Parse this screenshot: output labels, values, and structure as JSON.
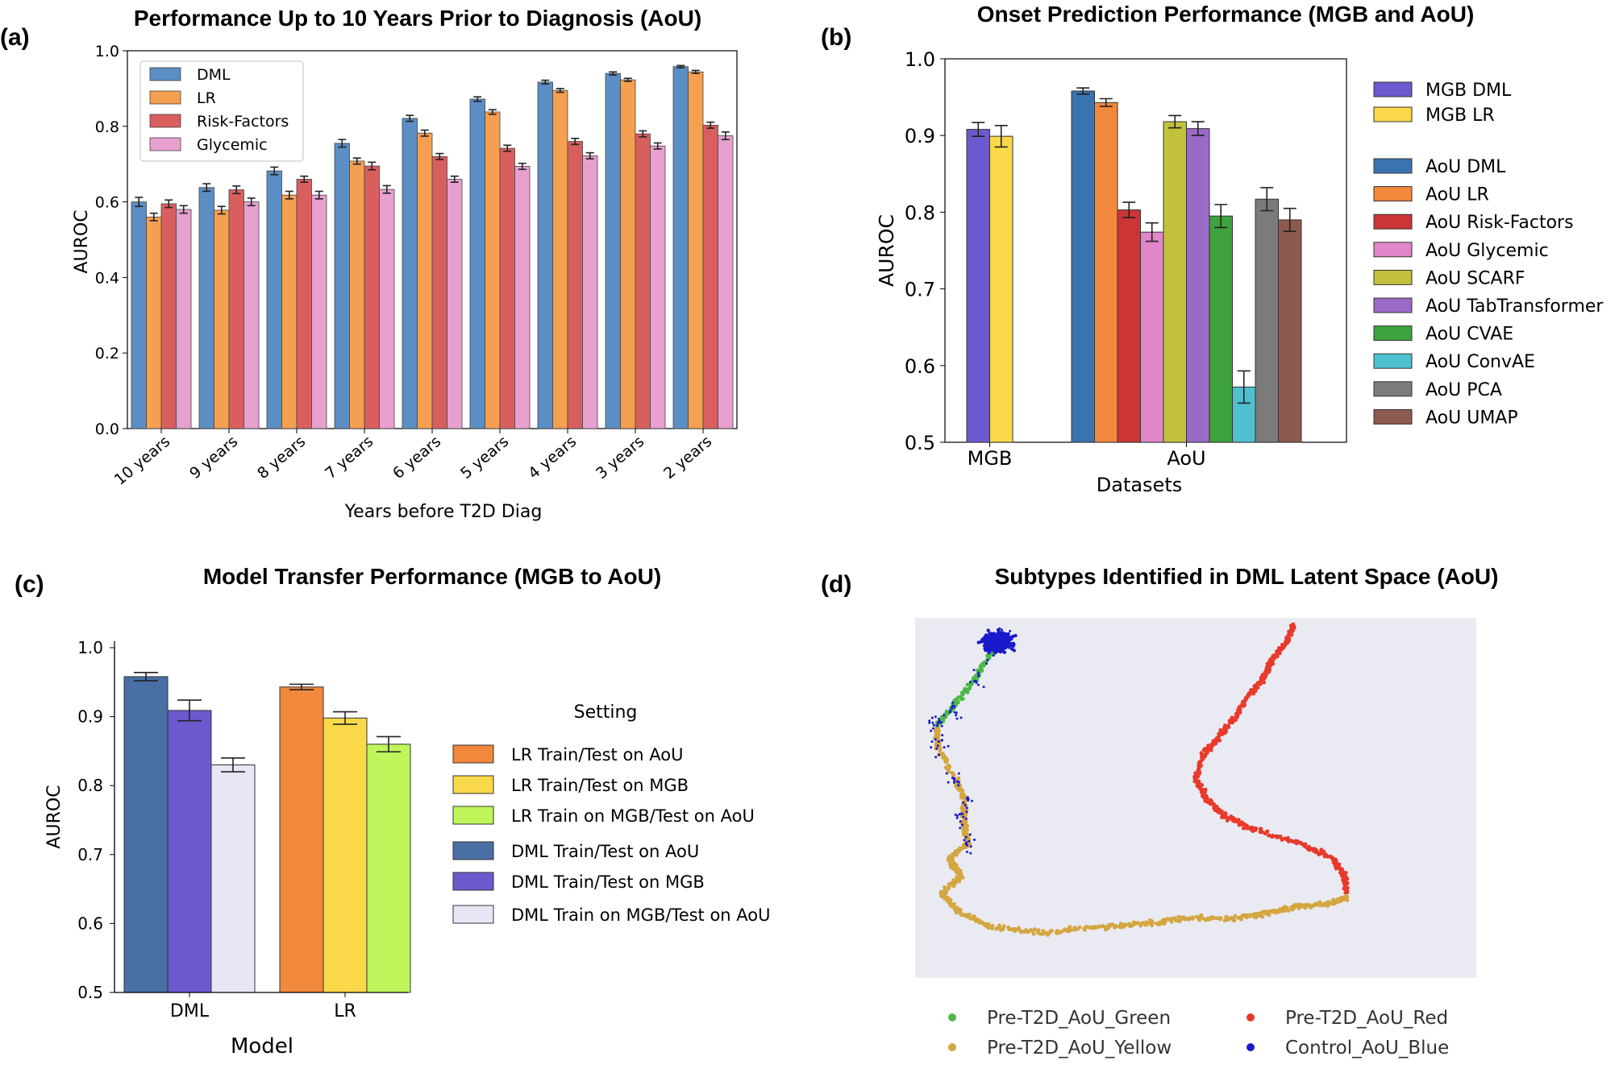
{
  "panels": {
    "a": {
      "label": "(a)",
      "chart_data": {
        "type": "bar",
        "title": "Performance Up to 10 Years Prior to Diagnosis (AoU)",
        "xlabel": "Years before T2D Diag",
        "ylabel": "AUROC",
        "ylim": [
          0,
          1.0
        ],
        "yticks": [
          "0.0",
          "0.2",
          "0.4",
          "0.6",
          "0.8",
          "1.0"
        ],
        "categories": [
          "10 years",
          "9 years",
          "8 years",
          "7 years",
          "6 years",
          "5 years",
          "4 years",
          "3 years",
          "2 years"
        ],
        "legend_position": "top-left",
        "series": [
          {
            "name": "DML",
            "color": "#5b8ec4",
            "values": [
              0.6,
              0.638,
              0.682,
              0.755,
              0.821,
              0.872,
              0.917,
              0.94,
              0.958
            ],
            "errors": [
              0.012,
              0.01,
              0.01,
              0.01,
              0.008,
              0.006,
              0.005,
              0.004,
              0.003
            ]
          },
          {
            "name": "LR",
            "color": "#f5a050",
            "values": [
              0.56,
              0.578,
              0.618,
              0.708,
              0.782,
              0.838,
              0.895,
              0.923,
              0.944
            ],
            "errors": [
              0.01,
              0.01,
              0.01,
              0.008,
              0.008,
              0.006,
              0.005,
              0.004,
              0.004
            ]
          },
          {
            "name": "Risk-Factors",
            "color": "#d95f5f",
            "values": [
              0.595,
              0.632,
              0.66,
              0.695,
              0.72,
              0.742,
              0.76,
              0.78,
              0.803
            ],
            "errors": [
              0.01,
              0.01,
              0.008,
              0.01,
              0.008,
              0.008,
              0.008,
              0.008,
              0.008
            ]
          },
          {
            "name": "Glycemic",
            "color": "#e8a0cf",
            "values": [
              0.58,
              0.6,
              0.618,
              0.633,
              0.66,
              0.694,
              0.722,
              0.748,
              0.775
            ],
            "errors": [
              0.01,
              0.01,
              0.01,
              0.01,
              0.008,
              0.008,
              0.008,
              0.008,
              0.01
            ]
          }
        ]
      }
    },
    "b": {
      "label": "(b)",
      "chart_data": {
        "type": "bar",
        "title": "Onset Prediction Performance (MGB and AoU)",
        "xlabel": "Datasets",
        "ylabel": "AUROC",
        "ylim": [
          0.5,
          1.0
        ],
        "yticks": [
          "0.5",
          "0.6",
          "0.7",
          "0.8",
          "0.9",
          "1.0"
        ],
        "categories": [
          "MGB",
          "AoU"
        ],
        "legend_position": "right",
        "series": [
          {
            "name": "MGB DML",
            "group": "MGB",
            "color": "#6a5acd",
            "value": 0.908,
            "error": 0.009
          },
          {
            "name": "MGB LR",
            "group": "MGB",
            "color": "#f9d949",
            "value": 0.899,
            "error": 0.014
          },
          {
            "name": "AoU DML",
            "group": "AoU",
            "color": "#3a74b0",
            "value": 0.958,
            "error": 0.004
          },
          {
            "name": "AoU LR",
            "group": "AoU",
            "color": "#f2883b",
            "value": 0.943,
            "error": 0.005
          },
          {
            "name": "AoU Risk-Factors",
            "group": "AoU",
            "color": "#cc3535",
            "value": 0.803,
            "error": 0.01
          },
          {
            "name": "AoU Glycemic",
            "group": "AoU",
            "color": "#e086c9",
            "value": 0.774,
            "error": 0.012
          },
          {
            "name": "AoU SCARF",
            "group": "AoU",
            "color": "#c2c13e",
            "value": 0.918,
            "error": 0.008
          },
          {
            "name": "AoU TabTransformer",
            "group": "AoU",
            "color": "#9a6ac7",
            "value": 0.909,
            "error": 0.009
          },
          {
            "name": "AoU CVAE",
            "group": "AoU",
            "color": "#3ea23e",
            "value": 0.795,
            "error": 0.015
          },
          {
            "name": "AoU ConvAE",
            "group": "AoU",
            "color": "#4fc0d0",
            "value": 0.572,
            "error": 0.021
          },
          {
            "name": "AoU PCA",
            "group": "AoU",
            "color": "#7b7b7b",
            "value": 0.817,
            "error": 0.015
          },
          {
            "name": "AoU UMAP",
            "group": "AoU",
            "color": "#8c5a4e",
            "value": 0.79,
            "error": 0.015
          }
        ]
      }
    },
    "c": {
      "label": "(c)",
      "chart_data": {
        "type": "bar",
        "title": "Model Transfer Performance (MGB to AoU)",
        "xlabel": "Model",
        "ylabel": "AUROC",
        "ylim": [
          0.5,
          1.0
        ],
        "yticks": [
          "0.5",
          "0.6",
          "0.7",
          "0.8",
          "0.9",
          "1.0"
        ],
        "categories": [
          "DML",
          "LR"
        ],
        "legend_title": "Setting",
        "legend_position": "right",
        "series": [
          {
            "name": "DML Train/Test on AoU",
            "group": "DML",
            "color": "#4a6fa5",
            "value": 0.958,
            "error": 0.006
          },
          {
            "name": "DML Train/Test on MGB",
            "group": "DML",
            "color": "#6a5acd",
            "value": 0.909,
            "error": 0.015
          },
          {
            "name": "DML Train on MGB/Test on AoU",
            "group": "DML",
            "color": "#e6e6f5",
            "value": 0.83,
            "error": 0.01
          },
          {
            "name": "LR Train/Test on AoU",
            "group": "LR",
            "color": "#f2883b",
            "value": 0.943,
            "error": 0.004
          },
          {
            "name": "LR Train/Test on MGB",
            "group": "LR",
            "color": "#f9d949",
            "value": 0.898,
            "error": 0.009
          },
          {
            "name": "LR Train on MGB/Test on AoU",
            "group": "LR",
            "color": "#bff55a",
            "value": 0.86,
            "error": 0.011
          }
        ],
        "legend_order": [
          3,
          4,
          5,
          0,
          1,
          2
        ]
      }
    },
    "d": {
      "label": "(d)",
      "chart_data": {
        "type": "scatter",
        "title": "Subtypes Identified in DML Latent Space (AoU)",
        "xlabel": "",
        "ylabel": "",
        "grid": false,
        "background": "#eaeaf2",
        "xlim": [
          0,
          100
        ],
        "ylim": [
          0,
          100
        ],
        "series": [
          {
            "name": "Pre-T2D_AoU_Yellow",
            "color": "#d4a640",
            "path": [
              [
                54,
                66
              ],
              [
                54,
                59
              ],
              [
                59,
                47
              ],
              [
                61,
                41
              ],
              [
                61,
                34
              ],
              [
                62,
                26
              ],
              [
                57,
                21
              ],
              [
                60,
                15
              ],
              [
                55,
                9
              ],
              [
                60,
                3
              ],
              [
                68,
                -2
              ],
              [
                82,
                -4
              ],
              [
                96,
                -2
              ],
              [
                108,
                -1
              ],
              [
                120,
                1
              ],
              [
                133,
                1
              ],
              [
                142,
                3
              ],
              [
                150,
                5
              ],
              [
                158,
                6
              ],
              [
                162,
                8
              ]
            ]
          },
          {
            "name": "Pre-T2D_AoU_Green",
            "color": "#4db848",
            "path": [
              [
                54,
                66
              ],
              [
                58,
                72
              ],
              [
                64,
                82
              ],
              [
                68,
                90
              ],
              [
                71,
                96
              ]
            ]
          },
          {
            "name": "Pre-T2D_AoU_Red",
            "color": "#e83a2a",
            "path": [
              [
                162,
                10
              ],
              [
                161,
                16
              ],
              [
                158,
                21
              ],
              [
                150,
                26
              ],
              [
                137,
                31
              ],
              [
                130,
                35
              ],
              [
                125,
                41
              ],
              [
                122,
                48
              ],
              [
                124,
                56
              ],
              [
                128,
                62
              ],
              [
                132,
                68
              ],
              [
                136,
                76
              ],
              [
                140,
                82
              ],
              [
                142,
                88
              ],
              [
                146,
                94
              ],
              [
                148,
                100
              ]
            ]
          },
          {
            "name": "Control_AoU_Blue",
            "color": "#1a1acc",
            "cluster": [
              70,
              94
            ]
          }
        ]
      }
    }
  }
}
